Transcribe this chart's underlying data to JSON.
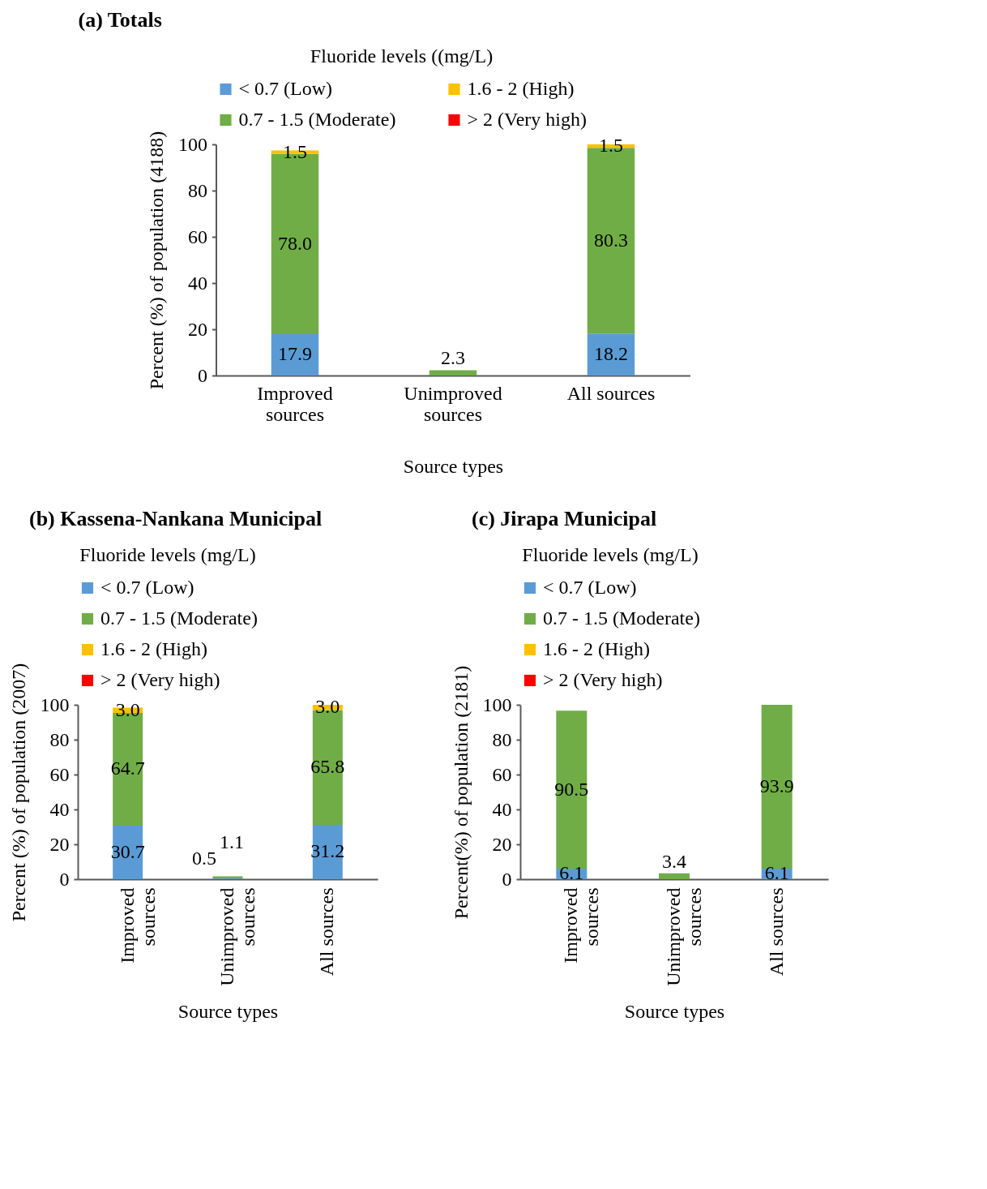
{
  "chart_data": [
    {
      "type": "bar",
      "title": "(a) Totals",
      "stacked": true,
      "legend": "top",
      "legend_title": "Fluoride levels ((mg/L)",
      "xlabel": "Source types",
      "ylabel": "Percent (%) of population (4188)",
      "categories": [
        "Improved sources",
        "Unimproved sources",
        "All sources"
      ],
      "ylim": [
        0,
        100
      ],
      "yticks": [
        0,
        20,
        40,
        60,
        80,
        100
      ],
      "series": [
        {
          "name": "< 0.7 (Low)",
          "color": "#5b9bd5",
          "values": [
            17.9,
            null,
            18.2
          ],
          "value_labels": [
            "17.9",
            null,
            "18.2"
          ]
        },
        {
          "name": "0.7 - 1.5 (Moderate)",
          "color": "#70ad47",
          "values": [
            78.0,
            2.3,
            80.3
          ],
          "value_labels": [
            "78.0",
            "2.3",
            "80.3"
          ]
        },
        {
          "name": "1.6 - 2 (High)",
          "color": "#ffc000",
          "values": [
            1.5,
            null,
            1.5
          ],
          "value_labels": [
            "1.5",
            null,
            "1.5"
          ]
        },
        {
          "name": "> 2 (Very high)",
          "color": "#ff0000",
          "values": [
            null,
            null,
            null
          ]
        }
      ]
    },
    {
      "type": "bar",
      "title": "(b)  Kassena-Nankana Municipal",
      "stacked": true,
      "legend": "top",
      "legend_title": "Fluoride levels (mg/L)",
      "xlabel": "Source types",
      "ylabel": "Percent (%) of population (2007)",
      "categories": [
        "Improved sources",
        "Unimproved sources",
        "All sources"
      ],
      "ylim": [
        0,
        100
      ],
      "yticks": [
        0,
        20,
        40,
        60,
        80,
        100
      ],
      "series": [
        {
          "name": "< 0.7 (Low)",
          "color": "#5b9bd5",
          "values": [
            30.7,
            0.5,
            31.2
          ],
          "value_labels": [
            "30.7",
            "0.5",
            "31.2"
          ]
        },
        {
          "name": "0.7 - 1.5 (Moderate)",
          "color": "#70ad47",
          "values": [
            64.7,
            1.1,
            65.8
          ],
          "value_labels": [
            "64.7",
            "1.1",
            "65.8"
          ]
        },
        {
          "name": "1.6 - 2 (High)",
          "color": "#ffc000",
          "values": [
            3.0,
            null,
            3.0
          ],
          "value_labels": [
            "3.0",
            null,
            "3.0"
          ]
        },
        {
          "name": "> 2 (Very high)",
          "color": "#ff0000",
          "values": [
            null,
            null,
            null
          ]
        }
      ]
    },
    {
      "type": "bar",
      "title": "(c)  Jirapa Municipal",
      "stacked": true,
      "legend": "top",
      "legend_title": "Fluoride levels (mg/L)",
      "xlabel": "Source types",
      "ylabel": "Percent(%) of population (2181)",
      "categories": [
        "Improved sources",
        "Unimproved sources",
        "All sources"
      ],
      "ylim": [
        0,
        100
      ],
      "yticks": [
        0,
        20,
        40,
        60,
        80,
        100
      ],
      "series": [
        {
          "name": "< 0.7 (Low)",
          "color": "#5b9bd5",
          "values": [
            6.1,
            null,
            6.1
          ],
          "value_labels": [
            "6.1",
            null,
            "6.1"
          ]
        },
        {
          "name": "0.7 - 1.5 (Moderate)",
          "color": "#70ad47",
          "values": [
            90.5,
            3.4,
            93.9
          ],
          "value_labels": [
            "90.5",
            "3.4",
            "93.9"
          ]
        },
        {
          "name": "1.6 - 2 (High)",
          "color": "#ffc000",
          "values": [
            null,
            null,
            null
          ]
        },
        {
          "name": "> 2 (Very high)",
          "color": "#ff0000",
          "values": [
            null,
            null,
            null
          ]
        }
      ]
    }
  ]
}
